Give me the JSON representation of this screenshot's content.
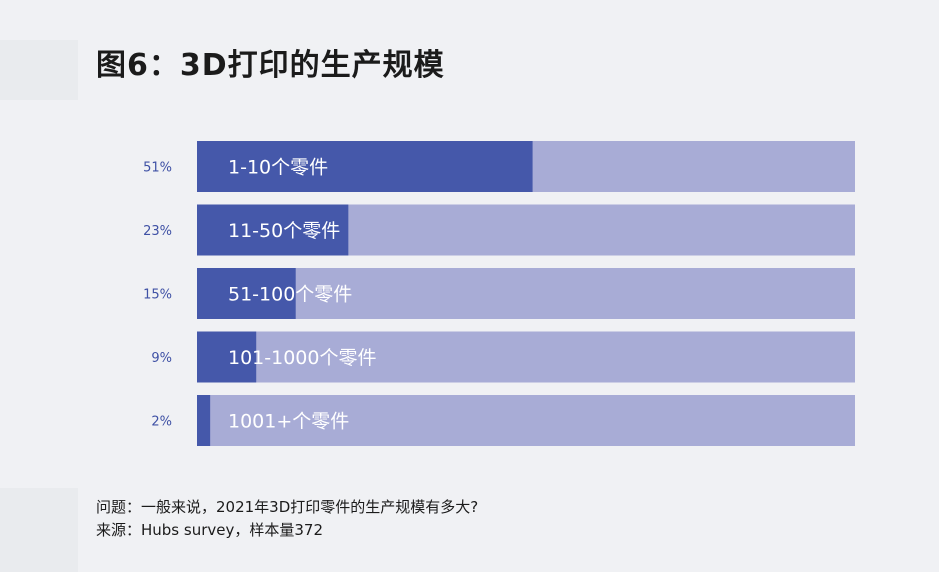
{
  "title": "图6：3D打印的生产规模",
  "chart_data": {
    "type": "bar",
    "orientation": "horizontal",
    "stacked_background": true,
    "categories": [
      "1-10个零件",
      "11-50个零件",
      "51-100个零件",
      "101-1000个零件",
      "1001+个零件"
    ],
    "value_labels": [
      "51%",
      "23%",
      "15%",
      "9%",
      "2%"
    ],
    "values": [
      51,
      23,
      15,
      9,
      2
    ],
    "xlim": [
      0,
      100
    ],
    "unit": "%",
    "title": "图6：3D打印的生产规模",
    "xlabel": "",
    "ylabel": "",
    "grid": false,
    "legend": "none",
    "colors": {
      "bar": "#4558aa",
      "track": "#a8acd6",
      "value_label": "#3f51a5",
      "bar_text": "#ffffff"
    }
  },
  "footer": {
    "question": "问题：一般来说，2021年3D打印零件的生产规模有多大?",
    "source": "来源：Hubs survey，样本量372"
  }
}
